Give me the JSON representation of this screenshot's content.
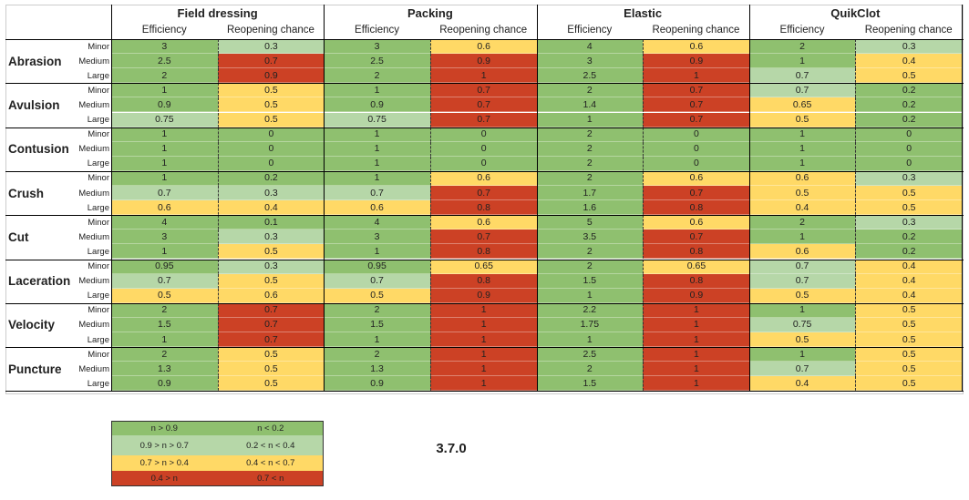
{
  "header": {
    "groups": [
      {
        "name": "Field dressing",
        "columns": [
          "Efficiency",
          "Reopening chance"
        ]
      },
      {
        "name": "Packing",
        "columns": [
          "Efficiency",
          "Reopening chance"
        ]
      },
      {
        "name": "Elastic",
        "columns": [
          "Efficiency",
          "Reopening chance"
        ]
      },
      {
        "name": "QuikClot",
        "columns": [
          "Efficiency",
          "Reopening chance"
        ]
      }
    ]
  },
  "palette": {
    "green": "#8fc06f",
    "light-green": "#b6d7a8",
    "yellow": "#ffd966",
    "red": "#cc4125"
  },
  "table": {
    "wounds": [
      {
        "name": "Abrasion",
        "rows": [
          {
            "size": "Minor",
            "values": [
              3,
              0.3,
              3,
              0.6,
              4,
              0.6,
              2,
              0.3
            ],
            "shades": [
              "green",
              "light-green",
              "green",
              "yellow",
              "green",
              "yellow",
              "green",
              "light-green"
            ]
          },
          {
            "size": "Medium",
            "values": [
              2.5,
              0.7,
              2.5,
              0.9,
              3,
              0.9,
              1,
              0.4
            ],
            "shades": [
              "green",
              "red",
              "green",
              "red",
              "green",
              "red",
              "green",
              "yellow"
            ]
          },
          {
            "size": "Large",
            "values": [
              2,
              0.9,
              2,
              1,
              2.5,
              1,
              0.7,
              0.5
            ],
            "shades": [
              "green",
              "red",
              "green",
              "red",
              "green",
              "red",
              "light-green",
              "yellow"
            ]
          }
        ]
      },
      {
        "name": "Avulsion",
        "rows": [
          {
            "size": "Minor",
            "values": [
              1,
              0.5,
              1,
              0.7,
              2,
              0.7,
              0.7,
              0.2
            ],
            "shades": [
              "green",
              "yellow",
              "green",
              "red",
              "green",
              "red",
              "light-green",
              "green"
            ]
          },
          {
            "size": "Medium",
            "values": [
              0.9,
              0.5,
              0.9,
              0.7,
              1.4,
              0.7,
              0.65,
              0.2
            ],
            "shades": [
              "green",
              "yellow",
              "green",
              "red",
              "green",
              "red",
              "yellow",
              "green"
            ]
          },
          {
            "size": "Large",
            "values": [
              0.75,
              0.5,
              0.75,
              0.7,
              1,
              0.7,
              0.5,
              0.2
            ],
            "shades": [
              "light-green",
              "yellow",
              "light-green",
              "red",
              "green",
              "red",
              "yellow",
              "green"
            ]
          }
        ]
      },
      {
        "name": "Contusion",
        "rows": [
          {
            "size": "Minor",
            "values": [
              1,
              0,
              1,
              0,
              2,
              0,
              1,
              0
            ],
            "shades": [
              "green",
              "green",
              "green",
              "green",
              "green",
              "green",
              "green",
              "green"
            ]
          },
          {
            "size": "Medium",
            "values": [
              1,
              0,
              1,
              0,
              2,
              0,
              1,
              0
            ],
            "shades": [
              "green",
              "green",
              "green",
              "green",
              "green",
              "green",
              "green",
              "green"
            ]
          },
          {
            "size": "Large",
            "values": [
              1,
              0,
              1,
              0,
              2,
              0,
              1,
              0
            ],
            "shades": [
              "green",
              "green",
              "green",
              "green",
              "green",
              "green",
              "green",
              "green"
            ]
          }
        ]
      },
      {
        "name": "Crush",
        "rows": [
          {
            "size": "Minor",
            "values": [
              1,
              0.2,
              1,
              0.6,
              2,
              0.6,
              0.6,
              0.3
            ],
            "shades": [
              "green",
              "green",
              "green",
              "yellow",
              "green",
              "yellow",
              "yellow",
              "light-green"
            ]
          },
          {
            "size": "Medium",
            "values": [
              0.7,
              0.3,
              0.7,
              0.7,
              1.7,
              0.7,
              0.5,
              0.5
            ],
            "shades": [
              "light-green",
              "light-green",
              "light-green",
              "red",
              "green",
              "red",
              "yellow",
              "yellow"
            ]
          },
          {
            "size": "Large",
            "values": [
              0.6,
              0.4,
              0.6,
              0.8,
              1.6,
              0.8,
              0.4,
              0.5
            ],
            "shades": [
              "yellow",
              "yellow",
              "yellow",
              "red",
              "green",
              "red",
              "yellow",
              "yellow"
            ]
          }
        ]
      },
      {
        "name": "Cut",
        "rows": [
          {
            "size": "Minor",
            "values": [
              4,
              0.1,
              4,
              0.6,
              5,
              0.6,
              2,
              0.3
            ],
            "shades": [
              "green",
              "green",
              "green",
              "yellow",
              "green",
              "yellow",
              "green",
              "light-green"
            ]
          },
          {
            "size": "Medium",
            "values": [
              3,
              0.3,
              3,
              0.7,
              3.5,
              0.7,
              1,
              0.2
            ],
            "shades": [
              "green",
              "light-green",
              "green",
              "red",
              "green",
              "red",
              "green",
              "green"
            ]
          },
          {
            "size": "Large",
            "values": [
              1,
              0.5,
              1,
              0.8,
              2,
              0.8,
              0.6,
              0.2
            ],
            "shades": [
              "green",
              "yellow",
              "green",
              "red",
              "green",
              "red",
              "yellow",
              "green"
            ]
          }
        ]
      },
      {
        "name": "Laceration",
        "rows": [
          {
            "size": "Minor",
            "values": [
              0.95,
              0.3,
              0.95,
              0.65,
              2,
              0.65,
              0.7,
              0.4
            ],
            "shades": [
              "green",
              "light-green",
              "green",
              "yellow",
              "green",
              "yellow",
              "light-green",
              "yellow"
            ]
          },
          {
            "size": "Medium",
            "values": [
              0.7,
              0.5,
              0.7,
              0.8,
              1.5,
              0.8,
              0.7,
              0.4
            ],
            "shades": [
              "light-green",
              "yellow",
              "light-green",
              "red",
              "green",
              "red",
              "light-green",
              "yellow"
            ]
          },
          {
            "size": "Large",
            "values": [
              0.5,
              0.6,
              0.5,
              0.9,
              1,
              0.9,
              0.5,
              0.4
            ],
            "shades": [
              "yellow",
              "yellow",
              "yellow",
              "red",
              "green",
              "red",
              "yellow",
              "yellow"
            ]
          }
        ]
      },
      {
        "name": "Velocity",
        "rows": [
          {
            "size": "Minor",
            "values": [
              2,
              0.7,
              2,
              1,
              2.2,
              1,
              1,
              0.5
            ],
            "shades": [
              "green",
              "red",
              "green",
              "red",
              "green",
              "red",
              "green",
              "yellow"
            ]
          },
          {
            "size": "Medium",
            "values": [
              1.5,
              0.7,
              1.5,
              1,
              1.75,
              1,
              0.75,
              0.5
            ],
            "shades": [
              "green",
              "red",
              "green",
              "red",
              "green",
              "red",
              "light-green",
              "yellow"
            ]
          },
          {
            "size": "Large",
            "values": [
              1,
              0.7,
              1,
              1,
              1,
              1,
              0.5,
              0.5
            ],
            "shades": [
              "green",
              "red",
              "green",
              "red",
              "green",
              "red",
              "yellow",
              "yellow"
            ]
          }
        ]
      },
      {
        "name": "Puncture",
        "rows": [
          {
            "size": "Minor",
            "values": [
              2,
              0.5,
              2,
              1,
              2.5,
              1,
              1,
              0.5
            ],
            "shades": [
              "green",
              "yellow",
              "green",
              "red",
              "green",
              "red",
              "green",
              "yellow"
            ]
          },
          {
            "size": "Medium",
            "values": [
              1.3,
              0.5,
              1.3,
              1,
              2,
              1,
              0.7,
              0.5
            ],
            "shades": [
              "green",
              "yellow",
              "green",
              "red",
              "green",
              "red",
              "light-green",
              "yellow"
            ]
          },
          {
            "size": "Large",
            "values": [
              0.9,
              0.5,
              0.9,
              1,
              1.5,
              1,
              0.4,
              0.5
            ],
            "shades": [
              "green",
              "yellow",
              "green",
              "red",
              "green",
              "red",
              "yellow",
              "yellow"
            ]
          }
        ]
      }
    ]
  },
  "legend": {
    "rows": [
      {
        "cells": [
          "n > 0.9",
          "n < 0.2"
        ],
        "shade": "green"
      },
      {
        "cells": [
          "0.9 > n > 0.7",
          "0.2 < n < 0.4"
        ],
        "shade": "light-green"
      },
      {
        "cells": [
          "0.7 > n > 0.4",
          "0.4 < n < 0.7"
        ],
        "shade": "yellow"
      },
      {
        "cells": [
          "0.4 > n",
          "0.7 < n"
        ],
        "shade": "red"
      }
    ]
  },
  "version": "3.7.0"
}
